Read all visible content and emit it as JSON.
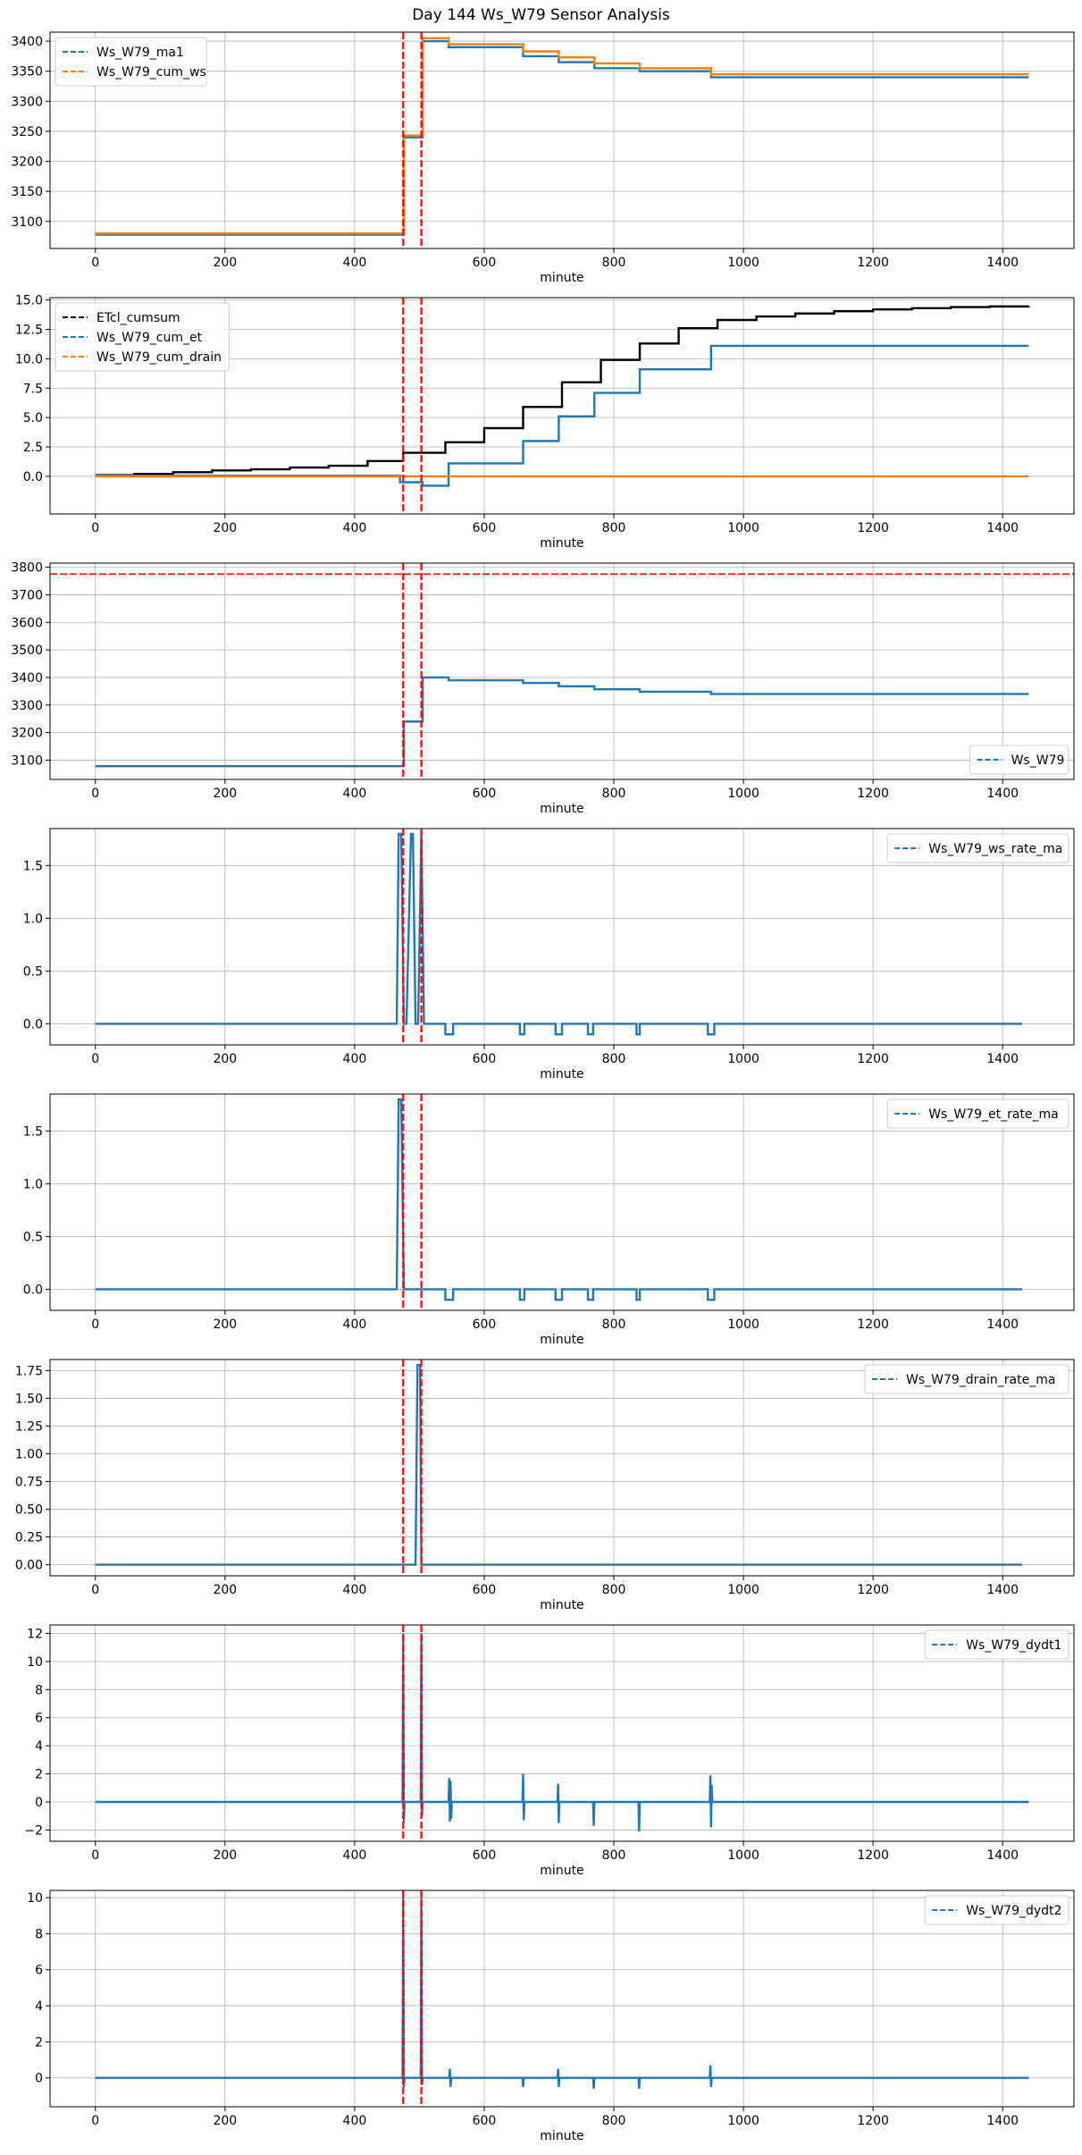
{
  "figure_title": "Day 144 Ws_W79 Sensor Analysis",
  "colors": {
    "blue": "#1f77b4",
    "orange": "#ff7f0e",
    "black": "#000000",
    "event_line": "#ff0000",
    "grid": "#b0b0b0"
  },
  "chart_data": [
    {
      "type": "line",
      "xlabel": "minute",
      "xlim": [
        -70,
        1510
      ],
      "ylim": [
        3055,
        3415
      ],
      "xticks": [
        0,
        200,
        400,
        600,
        800,
        1000,
        1200,
        1400
      ],
      "yticks": [
        3100,
        3150,
        3200,
        3250,
        3300,
        3350,
        3400
      ],
      "grid": true,
      "legend_position": "upper left",
      "vlines": [
        475,
        503
      ],
      "series": [
        {
          "name": "Ws_W79_ma1",
          "color": "#1f77b4",
          "style": "step",
          "x": [
            0,
            470,
            476,
            502,
            505,
            545,
            660,
            715,
            770,
            840,
            950,
            1440
          ],
          "y": [
            3078,
            3078,
            3240,
            3240,
            3400,
            3390,
            3375,
            3365,
            3355,
            3350,
            3340,
            3340
          ]
        },
        {
          "name": "Ws_W79_cum_ws",
          "color": "#ff7f0e",
          "style": "step",
          "x": [
            0,
            470,
            476,
            502,
            505,
            545,
            660,
            715,
            770,
            840,
            950,
            1440
          ],
          "y": [
            3080,
            3080,
            3243,
            3243,
            3405,
            3395,
            3383,
            3373,
            3363,
            3355,
            3345,
            3345
          ]
        }
      ]
    },
    {
      "type": "line",
      "xlabel": "minute",
      "xlim": [
        -70,
        1510
      ],
      "ylim": [
        -3.2,
        15.2
      ],
      "xticks": [
        0,
        200,
        400,
        600,
        800,
        1000,
        1200,
        1400
      ],
      "yticks": [
        0.0,
        2.5,
        5.0,
        7.5,
        10.0,
        12.5,
        15.0
      ],
      "grid": true,
      "legend_position": "upper left",
      "vlines": [
        475,
        503
      ],
      "series": [
        {
          "name": "ETcl_cumsum",
          "color": "#000000",
          "style": "step",
          "x": [
            0,
            60,
            120,
            180,
            240,
            300,
            360,
            420,
            475,
            540,
            600,
            660,
            720,
            780,
            840,
            900,
            960,
            1020,
            1080,
            1140,
            1200,
            1260,
            1320,
            1380,
            1440
          ],
          "y": [
            0.1,
            0.2,
            0.35,
            0.5,
            0.6,
            0.75,
            0.9,
            1.3,
            2.0,
            2.9,
            4.1,
            5.9,
            8.0,
            9.9,
            11.3,
            12.6,
            13.3,
            13.6,
            13.85,
            14.05,
            14.2,
            14.3,
            14.4,
            14.45,
            14.5
          ]
        },
        {
          "name": "Ws_W79_cum_et",
          "color": "#1f77b4",
          "style": "step",
          "x": [
            0,
            470,
            505,
            545,
            660,
            715,
            770,
            840,
            950,
            1440
          ],
          "y": [
            0.05,
            -0.5,
            -0.8,
            1.1,
            3.0,
            5.1,
            7.1,
            9.1,
            11.1,
            11.1
          ]
        },
        {
          "name": "Ws_W79_cum_drain",
          "color": "#ff7f0e",
          "style": "step",
          "x": [
            0,
            1440
          ],
          "y": [
            0.0,
            0.0
          ]
        }
      ]
    },
    {
      "type": "line",
      "xlabel": "minute",
      "xlim": [
        -70,
        1510
      ],
      "ylim": [
        3030,
        3815
      ],
      "xticks": [
        0,
        200,
        400,
        600,
        800,
        1000,
        1200,
        1400
      ],
      "yticks": [
        3100,
        3200,
        3300,
        3400,
        3500,
        3600,
        3700,
        3800
      ],
      "grid": true,
      "legend_position": "lower right",
      "vlines": [
        475,
        503
      ],
      "hlines": [
        3775
      ],
      "series": [
        {
          "name": "Ws_W79",
          "color": "#1f77b4",
          "style": "step",
          "x": [
            0,
            470,
            476,
            502,
            505,
            545,
            660,
            715,
            770,
            840,
            950,
            1440
          ],
          "y": [
            3078,
            3078,
            3240,
            3240,
            3400,
            3390,
            3380,
            3368,
            3357,
            3348,
            3340,
            3340
          ]
        }
      ]
    },
    {
      "type": "line",
      "xlabel": "minute",
      "xlim": [
        -70,
        1510
      ],
      "ylim": [
        -0.2,
        1.85
      ],
      "xticks": [
        0,
        200,
        400,
        600,
        800,
        1000,
        1200,
        1400
      ],
      "yticks": [
        0.0,
        0.5,
        1.0,
        1.5
      ],
      "grid": true,
      "legend_position": "upper right",
      "vlines": [
        475,
        503
      ],
      "series": [
        {
          "name": "Ws_W79_ws_rate_ma",
          "color": "#1f77b4",
          "style": "line",
          "x": [
            0,
            465,
            468,
            472,
            476,
            480,
            487,
            490,
            494,
            498,
            503,
            507,
            540,
            540,
            552,
            552,
            655,
            655,
            662,
            662,
            710,
            710,
            720,
            720,
            760,
            760,
            768,
            768,
            835,
            835,
            840,
            840,
            945,
            945,
            955,
            955,
            1430
          ],
          "y": [
            0,
            0,
            1.8,
            1.8,
            0,
            0,
            1.8,
            1.8,
            0,
            0,
            1.8,
            0,
            0,
            -0.1,
            -0.1,
            0,
            0,
            -0.1,
            -0.1,
            0,
            0,
            -0.1,
            -0.1,
            0,
            0,
            -0.1,
            -0.1,
            0,
            0,
            -0.1,
            -0.1,
            0,
            0,
            -0.1,
            -0.1,
            0,
            0
          ]
        }
      ]
    },
    {
      "type": "line",
      "xlabel": "minute",
      "xlim": [
        -70,
        1510
      ],
      "ylim": [
        -0.2,
        1.85
      ],
      "xticks": [
        0,
        200,
        400,
        600,
        800,
        1000,
        1200,
        1400
      ],
      "yticks": [
        0.0,
        0.5,
        1.0,
        1.5
      ],
      "grid": true,
      "legend_position": "upper right",
      "vlines": [
        475,
        503
      ],
      "series": [
        {
          "name": "Ws_W79_et_rate_ma",
          "color": "#1f77b4",
          "style": "line",
          "x": [
            0,
            465,
            468,
            472,
            476,
            540,
            540,
            552,
            552,
            655,
            655,
            662,
            662,
            710,
            710,
            720,
            720,
            760,
            760,
            768,
            768,
            835,
            835,
            840,
            840,
            945,
            945,
            955,
            955,
            1430
          ],
          "y": [
            0,
            0,
            1.8,
            1.8,
            0,
            0,
            -0.1,
            -0.1,
            0,
            0,
            -0.1,
            -0.1,
            0,
            0,
            -0.1,
            -0.1,
            0,
            0,
            -0.1,
            -0.1,
            0,
            0,
            -0.1,
            -0.1,
            0,
            0,
            -0.1,
            -0.1,
            0,
            0
          ]
        }
      ]
    },
    {
      "type": "line",
      "xlabel": "minute",
      "xlim": [
        -70,
        1510
      ],
      "ylim": [
        -0.1,
        1.85
      ],
      "xticks": [
        0,
        200,
        400,
        600,
        800,
        1000,
        1200,
        1400
      ],
      "yticks": [
        0.0,
        0.25,
        0.5,
        0.75,
        1.0,
        1.25,
        1.5,
        1.75
      ],
      "grid": true,
      "legend_position": "upper right",
      "vlines": [
        475,
        503
      ],
      "series": [
        {
          "name": "Ws_W79_drain_rate_ma",
          "color": "#1f77b4",
          "style": "line",
          "x": [
            0,
            494,
            497,
            501,
            503,
            1430
          ],
          "y": [
            0,
            0,
            1.8,
            1.8,
            0,
            0
          ]
        }
      ]
    },
    {
      "type": "line",
      "xlabel": "minute",
      "xlim": [
        -70,
        1510
      ],
      "ylim": [
        -2.8,
        12.6
      ],
      "xticks": [
        0,
        200,
        400,
        600,
        800,
        1000,
        1200,
        1400
      ],
      "yticks": [
        -2,
        0,
        2,
        4,
        6,
        8,
        10,
        12
      ],
      "grid": true,
      "legend_position": "upper right",
      "vlines": [
        475,
        503
      ],
      "series": [
        {
          "name": "Ws_W79_dydt1",
          "color": "#1f77b4",
          "style": "line",
          "x": [
            0,
            474,
            475,
            476,
            477,
            502,
            503,
            504,
            505,
            545,
            546,
            547,
            548,
            549,
            550,
            659,
            660,
            661,
            662,
            713,
            714,
            715,
            716,
            768,
            769,
            770,
            838,
            839,
            840,
            948,
            949,
            950,
            951,
            952,
            1440
          ],
          "y": [
            0,
            0,
            12,
            -1.5,
            0,
            0,
            12,
            -1,
            0,
            0,
            1.7,
            -1.4,
            1.5,
            -1.2,
            0,
            0,
            2.0,
            -1.3,
            0,
            0,
            1.3,
            -1.5,
            0,
            0,
            -1.7,
            0,
            0,
            -2.1,
            0,
            0,
            1.9,
            -1.8,
            1.2,
            0,
            0
          ]
        }
      ]
    },
    {
      "type": "line",
      "xlabel": "minute",
      "xlim": [
        -70,
        1510
      ],
      "ylim": [
        -1.6,
        10.4
      ],
      "xticks": [
        0,
        200,
        400,
        600,
        800,
        1000,
        1200,
        1400
      ],
      "yticks": [
        0,
        2,
        4,
        6,
        8,
        10
      ],
      "grid": true,
      "legend_position": "upper right",
      "vlines": [
        475,
        503
      ],
      "series": [
        {
          "name": "Ws_W79_dydt2",
          "color": "#1f77b4",
          "style": "line",
          "x": [
            0,
            474,
            475,
            476,
            477,
            502,
            503,
            504,
            505,
            546,
            547,
            548,
            549,
            659,
            660,
            661,
            713,
            714,
            715,
            716,
            768,
            769,
            770,
            838,
            839,
            840,
            948,
            949,
            950,
            951,
            1440
          ],
          "y": [
            0,
            0,
            10,
            -0.5,
            0,
            0,
            10,
            -0.4,
            0,
            0,
            0.5,
            -0.5,
            0,
            0,
            -0.5,
            0,
            0,
            0.5,
            -0.5,
            0,
            0,
            -0.6,
            0,
            0,
            -0.6,
            0,
            0,
            0.7,
            -0.5,
            0,
            0
          ]
        }
      ]
    }
  ]
}
